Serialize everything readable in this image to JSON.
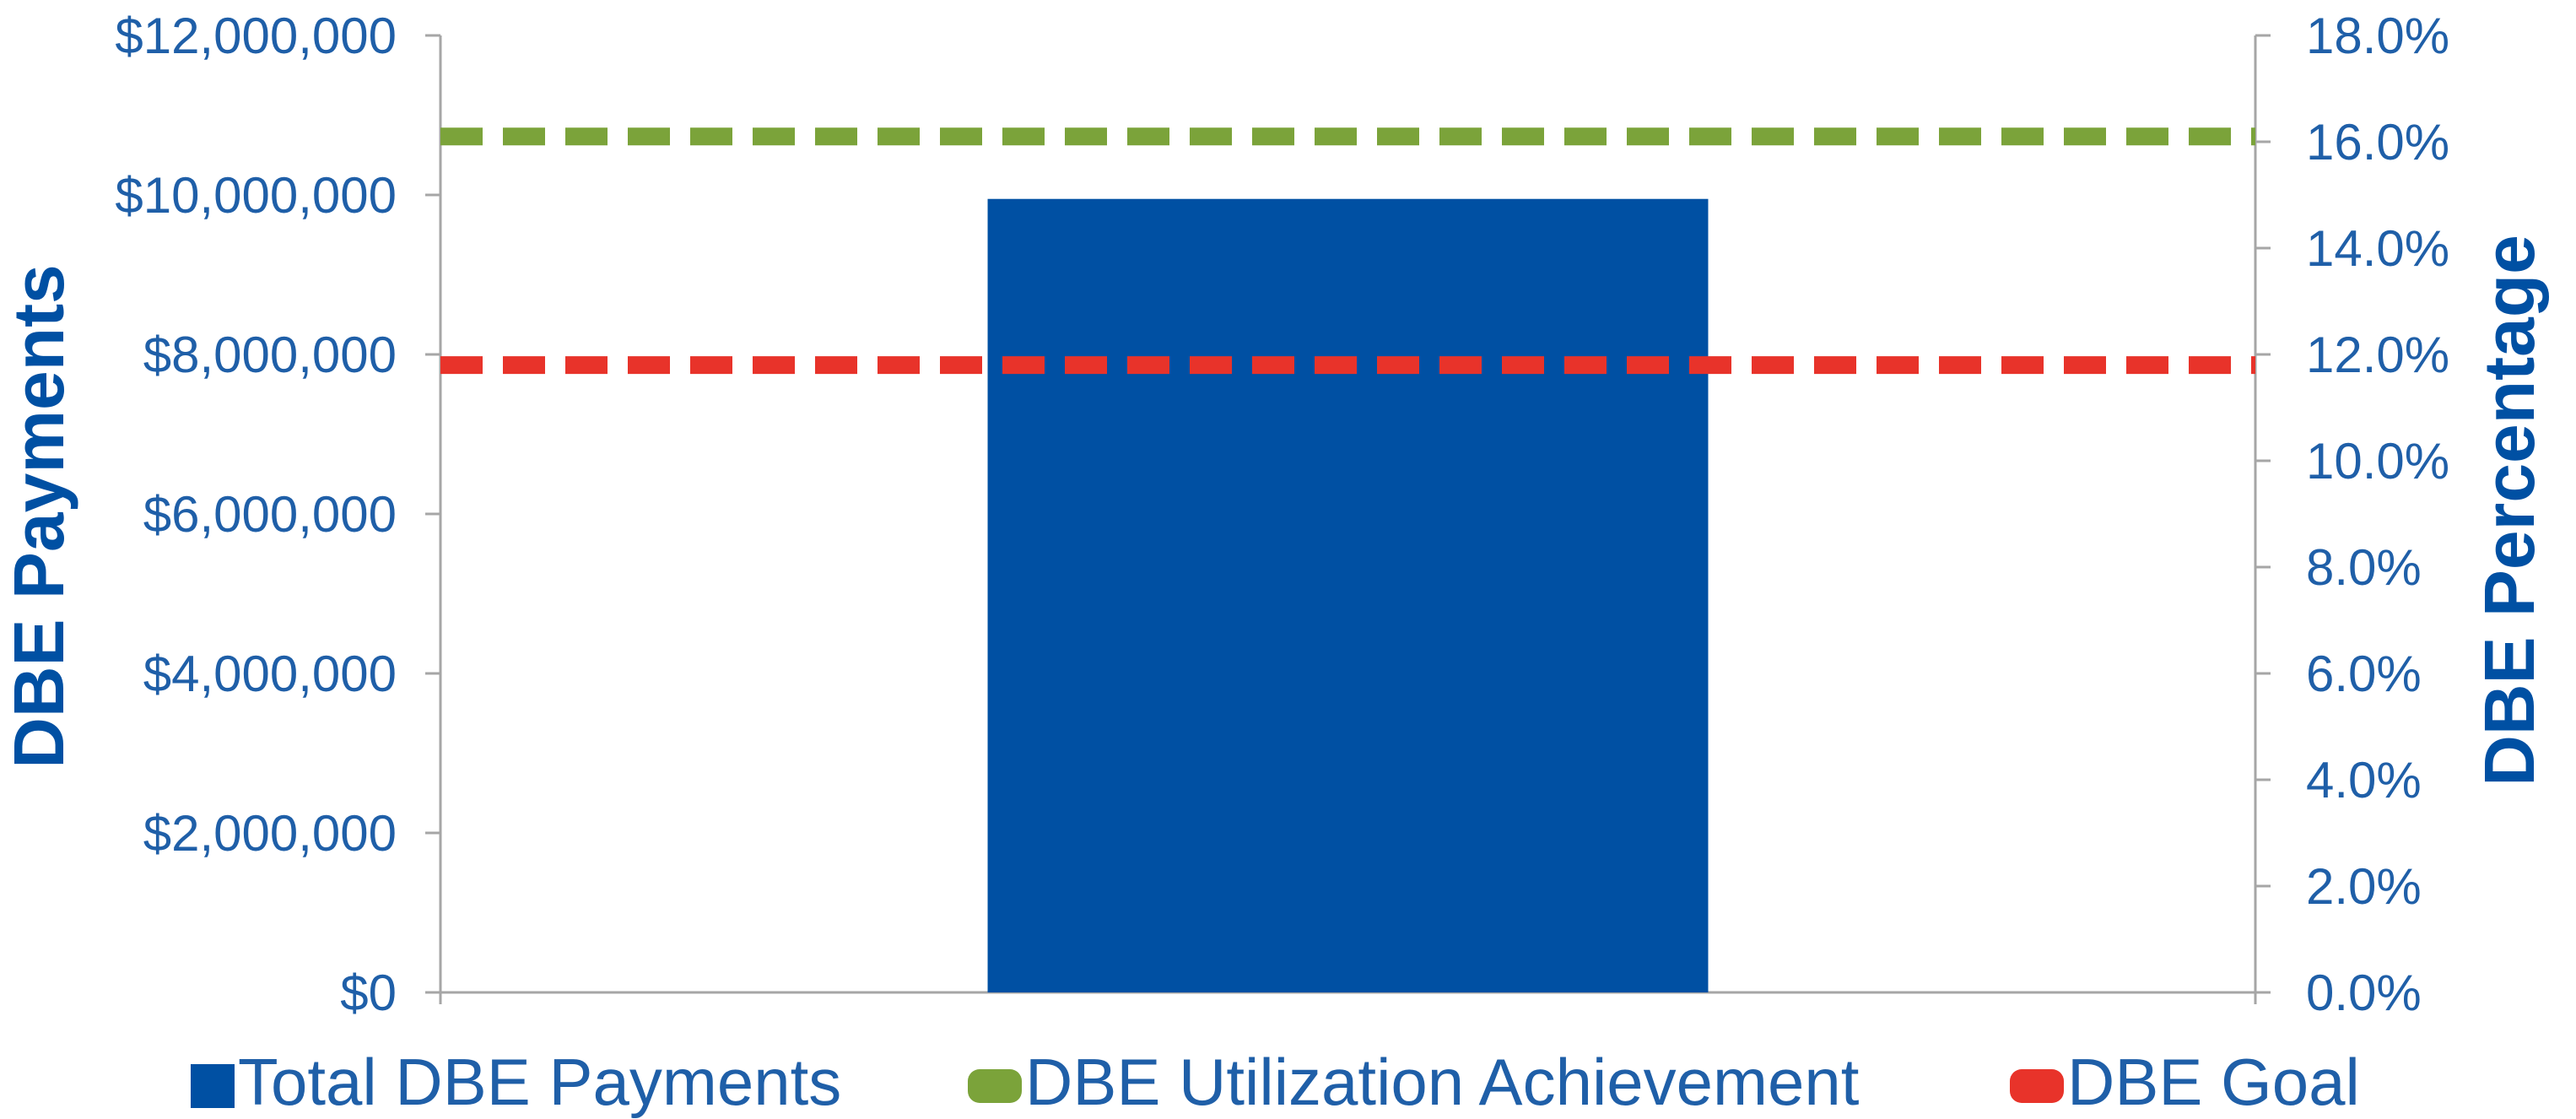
{
  "chart_data": {
    "type": "bar",
    "categories": [
      ""
    ],
    "series": [
      {
        "name": "Total DBE Payments",
        "kind": "bar",
        "axis": "left",
        "values": [
          9950000
        ],
        "color": "#0050A3"
      },
      {
        "name": "DBE Utilization Achievement",
        "kind": "line",
        "axis": "right",
        "style": "dashed",
        "value": 16.1,
        "color": "#7BA33A"
      },
      {
        "name": "DBE Goal",
        "kind": "line",
        "axis": "right",
        "style": "dashed",
        "value": 11.8,
        "color": "#E8332A"
      }
    ],
    "y_left": {
      "label": "DBE Payments",
      "ylim": [
        0,
        12000000
      ],
      "ticks": [
        "$0",
        "$2,000,000",
        "$4,000,000",
        "$6,000,000",
        "$8,000,000",
        "$10,000,000",
        "$12,000,000"
      ]
    },
    "y_right": {
      "label": "DBE Percentage",
      "ylim": [
        0,
        18
      ],
      "ticks": [
        "0.0%",
        "2.0%",
        "4.0%",
        "6.0%",
        "8.0%",
        "10.0%",
        "12.0%",
        "14.0%",
        "16.0%",
        "18.0%"
      ]
    },
    "grid": false,
    "legend": "bottom",
    "colors": {
      "text": "#1F5FA8",
      "axis": "#A6A6A6",
      "label": "#0050A3"
    }
  }
}
